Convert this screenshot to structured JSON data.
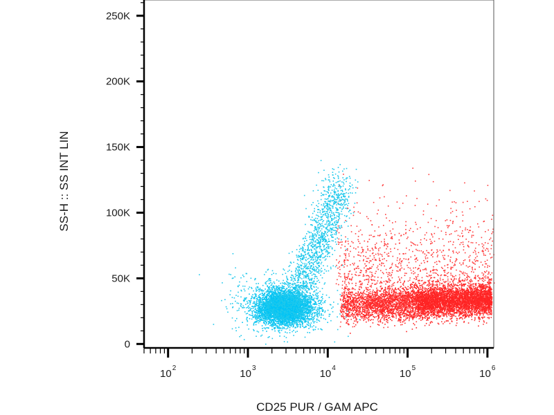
{
  "chart_data": {
    "type": "scatter",
    "title": "",
    "xlabel": "CD25 PUR / GAM APC",
    "ylabel": "SS-H :: SS INT LIN",
    "x_scale": "log",
    "x_range": [
      50,
      1200000
    ],
    "y_range": [
      -3000,
      262000
    ],
    "x_ticks": [
      {
        "base": "10",
        "exp": "2",
        "value": 100
      },
      {
        "base": "10",
        "exp": "3",
        "value": 1000
      },
      {
        "base": "10",
        "exp": "4",
        "value": 10000
      },
      {
        "base": "10",
        "exp": "5",
        "value": 100000
      },
      {
        "base": "10",
        "exp": "6",
        "value": 1000000
      }
    ],
    "y_ticks": [
      {
        "label": "0",
        "value": 0
      },
      {
        "label": "50K",
        "value": 50000
      },
      {
        "label": "100K",
        "value": 100000
      },
      {
        "label": "150K",
        "value": 150000
      },
      {
        "label": "200K",
        "value": 200000
      },
      {
        "label": "250K",
        "value": 250000
      }
    ],
    "grid": false,
    "legend": "none",
    "series": [
      {
        "color": "#1ec8ec",
        "core_color": "#00c4f6",
        "description_points": [
          {
            "x": 3000,
            "y": 28000
          },
          {
            "x": 2500,
            "y": 24000
          },
          {
            "x": 4000,
            "y": 32000
          },
          {
            "x": 8000,
            "y": 60000
          },
          {
            "x": 12000,
            "y": 95000
          },
          {
            "x": 15000,
            "y": 120000
          }
        ]
      },
      {
        "color": "#ff3b3b",
        "core_color": "#ff2424",
        "description_points": [
          {
            "x": 20000,
            "y": 30000
          },
          {
            "x": 100000,
            "y": 30000
          },
          {
            "x": 300000,
            "y": 35000
          },
          {
            "x": 60000,
            "y": 80000
          },
          {
            "x": 500000,
            "y": 60000
          }
        ]
      }
    ]
  }
}
